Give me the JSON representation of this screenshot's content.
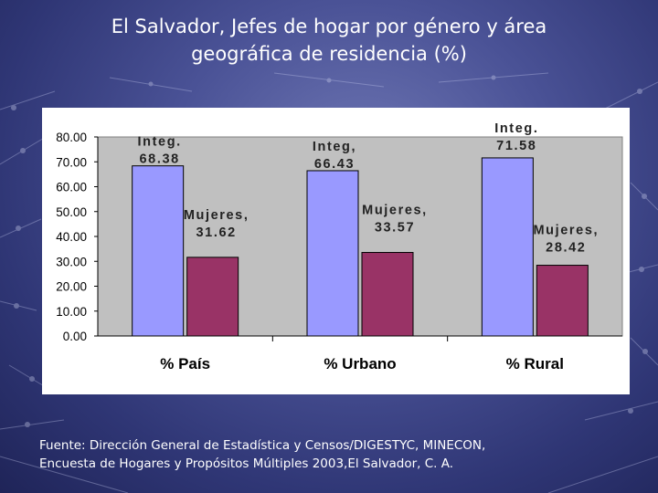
{
  "slide": {
    "title_line1": "El Salvador, Jefes de hogar por género y área",
    "title_line2": "geográfica de residencia (%)",
    "source_line1": "Fuente: Dirección General de Estadística y Censos/DIGESTYC, MINECON,",
    "source_line2": "Encuesta de Hogares y Propósitos Múltiples 2003,El Salvador, C. A."
  },
  "colors": {
    "series_integ": "#9999ff",
    "series_mujeres": "#993366",
    "plot_background": "#c0c0c0",
    "panel_background": "#ffffff"
  },
  "chart_data": {
    "type": "bar",
    "title": "",
    "xlabel": "",
    "ylabel": "",
    "categories": [
      "% País",
      "% Urbano",
      "% Rural"
    ],
    "ylim": [
      0,
      80
    ],
    "yticks": [
      "0.00",
      "10.00",
      "20.00",
      "30.00",
      "40.00",
      "50.00",
      "60.00",
      "70.00",
      "80.00"
    ],
    "grid": false,
    "legend": "none",
    "series": [
      {
        "values": [
          68.38,
          66.43,
          71.58
        ],
        "labels": [
          [
            "Integ.",
            "68.38"
          ],
          [
            "Integ,",
            "66.43"
          ],
          [
            "Integ.",
            "71.58"
          ]
        ]
      },
      {
        "values": [
          31.62,
          33.57,
          28.42
        ],
        "labels": [
          [
            "Mujeres,",
            "31.62"
          ],
          [
            "Mujeres,",
            "33.57"
          ],
          [
            "Mujeres,",
            "28.42"
          ]
        ]
      }
    ]
  }
}
